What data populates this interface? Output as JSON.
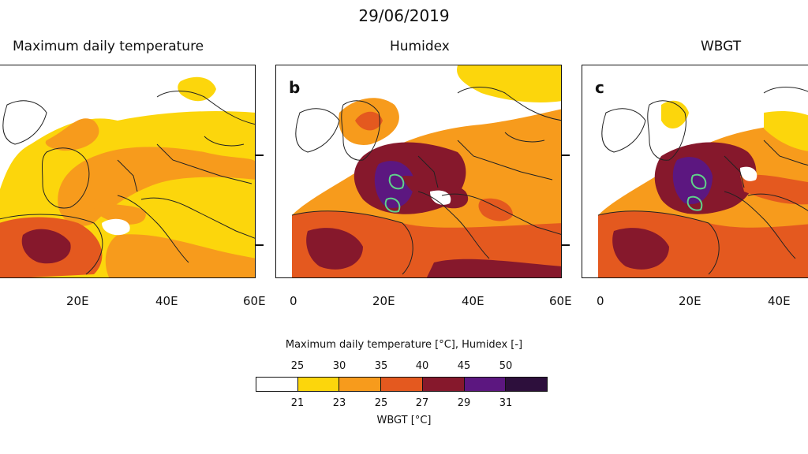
{
  "date_title": "29/06/2019",
  "panels": [
    {
      "title": "Maximum daily temperature",
      "letter": "",
      "x_ticks": [
        "20E",
        "40E",
        "60E"
      ]
    },
    {
      "title": "Humidex",
      "letter": "b",
      "x_ticks": [
        "0",
        "20E",
        "40E",
        "60E"
      ]
    },
    {
      "title": "WBGT",
      "letter": "c",
      "x_ticks": [
        "0",
        "20E",
        "40E"
      ]
    }
  ],
  "legend": {
    "title": "Maximum daily temperature [°C], Humidex [-]",
    "top_labels": [
      "25",
      "30",
      "35",
      "40",
      "45",
      "50"
    ],
    "bottom_labels": [
      "21",
      "23",
      "25",
      "27",
      "29",
      "31"
    ],
    "unit_label": "WBGT [°C]",
    "colors": [
      "#ffffff",
      "#fcd60c",
      "#f79b1c",
      "#e4591f",
      "#86182c",
      "#5c1780",
      "#2d0f3c"
    ]
  },
  "map_colors": {
    "land_white": "#ffffff",
    "yellow": "#fcd60c",
    "orange": "#f79b1c",
    "dark_orange": "#e4591f",
    "maroon": "#86182c",
    "purple": "#5c1780",
    "contour": "#5fd38a",
    "coast": "#222222"
  }
}
